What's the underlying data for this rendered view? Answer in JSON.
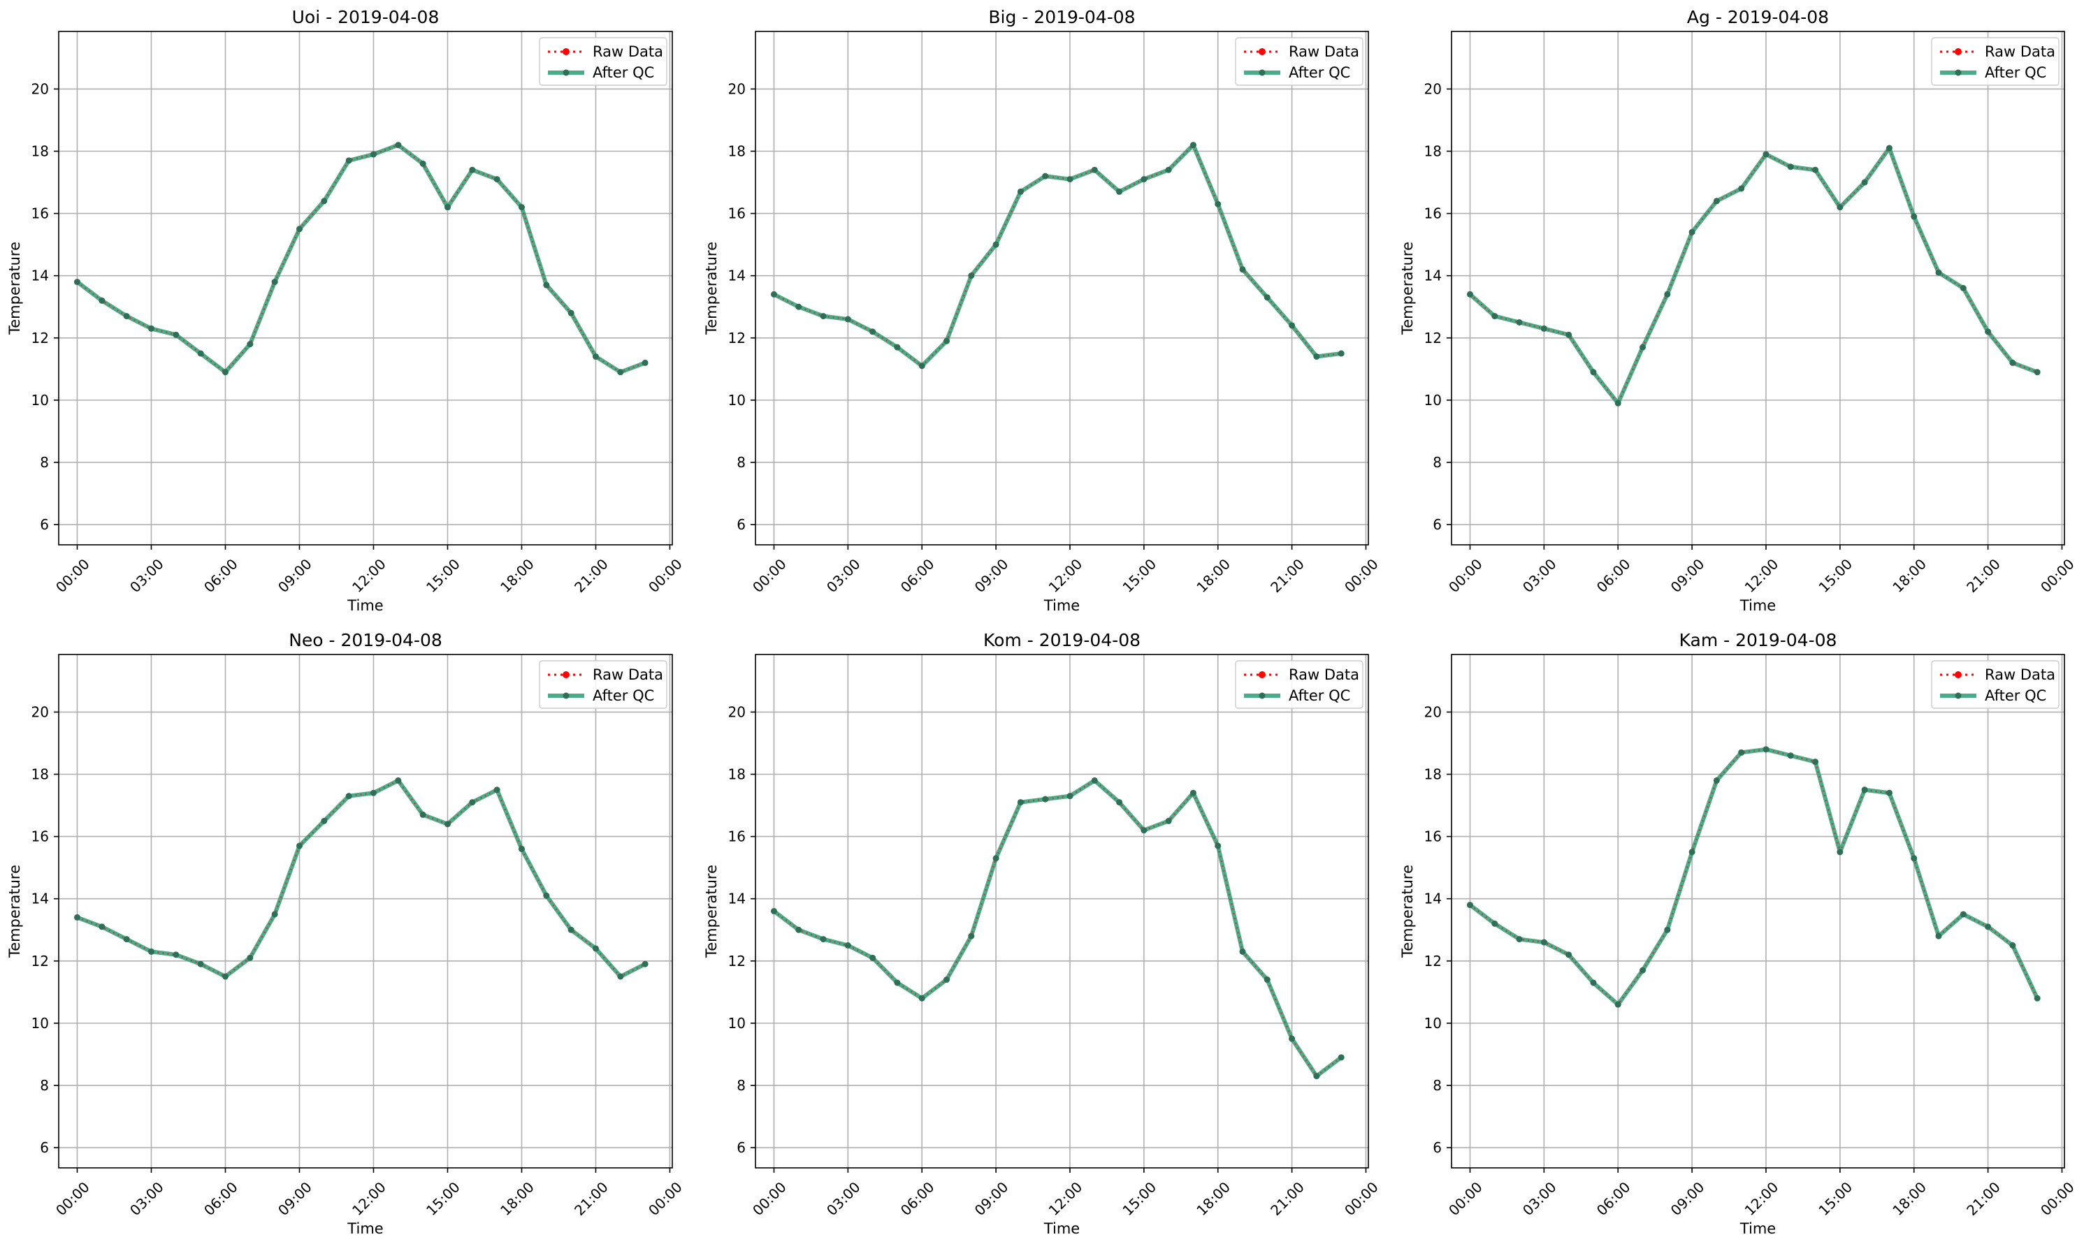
{
  "colors": {
    "raw": "#ff0000",
    "qc": "#2a9d74",
    "qc_marker": "#2f6f57",
    "grid": "#b0b0b0",
    "axis": "#000000"
  },
  "chart_data": [
    {
      "type": "line",
      "title": "Uoi - 2019-04-08",
      "xlabel": "Time",
      "ylabel": "Temperature",
      "x_ticks": [
        "00:00",
        "03:00",
        "06:00",
        "09:00",
        "12:00",
        "15:00",
        "18:00",
        "21:00",
        "00:00"
      ],
      "y_ticks": [
        6,
        8,
        10,
        12,
        14,
        16,
        18,
        20
      ],
      "xlim_hours": [
        -0.75,
        24.1
      ],
      "ylim": [
        5.35,
        21.85
      ],
      "grid": true,
      "legend": "top-right",
      "hours": [
        0,
        1,
        2,
        3,
        4,
        5,
        6,
        7,
        8,
        9,
        10,
        11,
        12,
        13,
        14,
        15,
        16,
        17,
        18,
        19,
        20,
        21,
        22,
        23
      ],
      "series": [
        {
          "name": "Raw Data",
          "values": [
            13.8,
            13.2,
            12.7,
            12.3,
            12.1,
            11.5,
            10.9,
            11.8,
            13.8,
            15.5,
            16.4,
            17.7,
            17.9,
            18.2,
            17.6,
            16.2,
            17.4,
            17.1,
            16.2,
            13.7,
            12.8,
            11.4,
            10.9,
            11.2
          ]
        },
        {
          "name": "After QC",
          "values": [
            13.8,
            13.2,
            12.7,
            12.3,
            12.1,
            11.5,
            10.9,
            11.8,
            13.8,
            15.5,
            16.4,
            17.7,
            17.9,
            18.2,
            17.6,
            16.2,
            17.4,
            17.1,
            16.2,
            13.7,
            12.8,
            11.4,
            10.9,
            11.2
          ]
        }
      ]
    },
    {
      "type": "line",
      "title": "Big - 2019-04-08",
      "xlabel": "Time",
      "ylabel": "Temperature",
      "x_ticks": [
        "00:00",
        "03:00",
        "06:00",
        "09:00",
        "12:00",
        "15:00",
        "18:00",
        "21:00",
        "00:00"
      ],
      "y_ticks": [
        6,
        8,
        10,
        12,
        14,
        16,
        18,
        20
      ],
      "xlim_hours": [
        -0.75,
        24.1
      ],
      "ylim": [
        5.35,
        21.85
      ],
      "grid": true,
      "legend": "top-right",
      "hours": [
        0,
        1,
        2,
        3,
        4,
        5,
        6,
        7,
        8,
        9,
        10,
        11,
        12,
        13,
        14,
        15,
        16,
        17,
        18,
        19,
        20,
        21,
        22,
        23
      ],
      "series": [
        {
          "name": "Raw Data",
          "values": [
            13.4,
            13.0,
            12.7,
            12.6,
            12.2,
            11.7,
            11.1,
            11.9,
            14.0,
            15.0,
            16.7,
            17.2,
            17.1,
            17.4,
            16.7,
            17.1,
            17.4,
            18.2,
            16.3,
            14.2,
            13.3,
            12.4,
            11.4,
            11.5
          ]
        },
        {
          "name": "After QC",
          "values": [
            13.4,
            13.0,
            12.7,
            12.6,
            12.2,
            11.7,
            11.1,
            11.9,
            14.0,
            15.0,
            16.7,
            17.2,
            17.1,
            17.4,
            16.7,
            17.1,
            17.4,
            18.2,
            16.3,
            14.2,
            13.3,
            12.4,
            11.4,
            11.5
          ]
        }
      ]
    },
    {
      "type": "line",
      "title": "Ag - 2019-04-08",
      "xlabel": "Time",
      "ylabel": "Temperature",
      "x_ticks": [
        "00:00",
        "03:00",
        "06:00",
        "09:00",
        "12:00",
        "15:00",
        "18:00",
        "21:00",
        "00:00"
      ],
      "y_ticks": [
        6,
        8,
        10,
        12,
        14,
        16,
        18,
        20
      ],
      "xlim_hours": [
        -0.75,
        24.1
      ],
      "ylim": [
        5.35,
        21.85
      ],
      "grid": true,
      "legend": "top-right",
      "hours": [
        0,
        1,
        2,
        3,
        4,
        5,
        6,
        7,
        8,
        9,
        10,
        11,
        12,
        13,
        14,
        15,
        16,
        17,
        18,
        19,
        20,
        21,
        22,
        23
      ],
      "series": [
        {
          "name": "Raw Data",
          "values": [
            13.4,
            12.7,
            12.5,
            12.3,
            12.1,
            10.9,
            9.9,
            11.7,
            13.4,
            15.4,
            16.4,
            16.8,
            17.9,
            17.5,
            17.4,
            16.2,
            17.0,
            18.1,
            15.9,
            14.1,
            13.6,
            12.2,
            11.2,
            10.9
          ]
        },
        {
          "name": "After QC",
          "values": [
            13.4,
            12.7,
            12.5,
            12.3,
            12.1,
            10.9,
            9.9,
            11.7,
            13.4,
            15.4,
            16.4,
            16.8,
            17.9,
            17.5,
            17.4,
            16.2,
            17.0,
            18.1,
            15.9,
            14.1,
            13.6,
            12.2,
            11.2,
            10.9
          ]
        }
      ]
    },
    {
      "type": "line",
      "title": "Neo - 2019-04-08",
      "xlabel": "Time",
      "ylabel": "Temperature",
      "x_ticks": [
        "00:00",
        "03:00",
        "06:00",
        "09:00",
        "12:00",
        "15:00",
        "18:00",
        "21:00",
        "00:00"
      ],
      "y_ticks": [
        6,
        8,
        10,
        12,
        14,
        16,
        18,
        20
      ],
      "xlim_hours": [
        -0.75,
        24.1
      ],
      "ylim": [
        5.35,
        21.85
      ],
      "grid": true,
      "legend": "top-right",
      "hours": [
        0,
        1,
        2,
        3,
        4,
        5,
        6,
        7,
        8,
        9,
        10,
        11,
        12,
        13,
        14,
        15,
        16,
        17,
        18,
        19,
        20,
        21,
        22,
        23
      ],
      "series": [
        {
          "name": "Raw Data",
          "values": [
            13.4,
            13.1,
            12.7,
            12.3,
            12.2,
            11.9,
            11.5,
            12.1,
            13.5,
            15.7,
            16.5,
            17.3,
            17.4,
            17.8,
            16.7,
            16.4,
            17.1,
            17.5,
            15.6,
            14.1,
            13.0,
            12.4,
            11.5,
            11.9
          ]
        },
        {
          "name": "After QC",
          "values": [
            13.4,
            13.1,
            12.7,
            12.3,
            12.2,
            11.9,
            11.5,
            12.1,
            13.5,
            15.7,
            16.5,
            17.3,
            17.4,
            17.8,
            16.7,
            16.4,
            17.1,
            17.5,
            15.6,
            14.1,
            13.0,
            12.4,
            11.5,
            11.9
          ]
        }
      ]
    },
    {
      "type": "line",
      "title": "Kom - 2019-04-08",
      "xlabel": "Time",
      "ylabel": "Temperature",
      "x_ticks": [
        "00:00",
        "03:00",
        "06:00",
        "09:00",
        "12:00",
        "15:00",
        "18:00",
        "21:00",
        "00:00"
      ],
      "y_ticks": [
        6,
        8,
        10,
        12,
        14,
        16,
        18,
        20
      ],
      "xlim_hours": [
        -0.75,
        24.1
      ],
      "ylim": [
        5.35,
        21.85
      ],
      "grid": true,
      "legend": "top-right",
      "hours": [
        0,
        1,
        2,
        3,
        4,
        5,
        6,
        7,
        8,
        9,
        10,
        11,
        12,
        13,
        14,
        15,
        16,
        17,
        18,
        19,
        20,
        21,
        22,
        23
      ],
      "series": [
        {
          "name": "Raw Data",
          "values": [
            13.6,
            13.0,
            12.7,
            12.5,
            12.1,
            11.3,
            10.8,
            11.4,
            12.8,
            15.3,
            17.1,
            17.2,
            17.3,
            17.8,
            17.1,
            16.2,
            16.5,
            17.4,
            15.7,
            12.3,
            11.4,
            9.5,
            8.3,
            8.9
          ]
        },
        {
          "name": "After QC",
          "values": [
            13.6,
            13.0,
            12.7,
            12.5,
            12.1,
            11.3,
            10.8,
            11.4,
            12.8,
            15.3,
            17.1,
            17.2,
            17.3,
            17.8,
            17.1,
            16.2,
            16.5,
            17.4,
            15.7,
            12.3,
            11.4,
            9.5,
            8.3,
            8.9
          ]
        }
      ]
    },
    {
      "type": "line",
      "title": "Kam - 2019-04-08",
      "xlabel": "Time",
      "ylabel": "Temperature",
      "x_ticks": [
        "00:00",
        "03:00",
        "06:00",
        "09:00",
        "12:00",
        "15:00",
        "18:00",
        "21:00",
        "00:00"
      ],
      "y_ticks": [
        6,
        8,
        10,
        12,
        14,
        16,
        18,
        20
      ],
      "xlim_hours": [
        -0.75,
        24.1
      ],
      "ylim": [
        5.35,
        21.85
      ],
      "grid": true,
      "legend": "top-right",
      "hours": [
        0,
        1,
        2,
        3,
        4,
        5,
        6,
        7,
        8,
        9,
        10,
        11,
        12,
        13,
        14,
        15,
        16,
        17,
        18,
        19,
        20,
        21,
        22,
        23
      ],
      "series": [
        {
          "name": "Raw Data",
          "values": [
            13.8,
            13.2,
            12.7,
            12.6,
            12.2,
            11.3,
            10.6,
            11.7,
            13.0,
            15.5,
            17.8,
            18.7,
            18.8,
            18.6,
            18.4,
            15.5,
            17.5,
            17.4,
            15.3,
            12.8,
            13.5,
            13.1,
            12.5,
            10.8
          ]
        },
        {
          "name": "After QC",
          "values": [
            13.8,
            13.2,
            12.7,
            12.6,
            12.2,
            11.3,
            10.6,
            11.7,
            13.0,
            15.5,
            17.8,
            18.7,
            18.8,
            18.6,
            18.4,
            15.5,
            17.5,
            17.4,
            15.3,
            12.8,
            13.5,
            13.1,
            12.5,
            10.8
          ]
        }
      ]
    }
  ]
}
